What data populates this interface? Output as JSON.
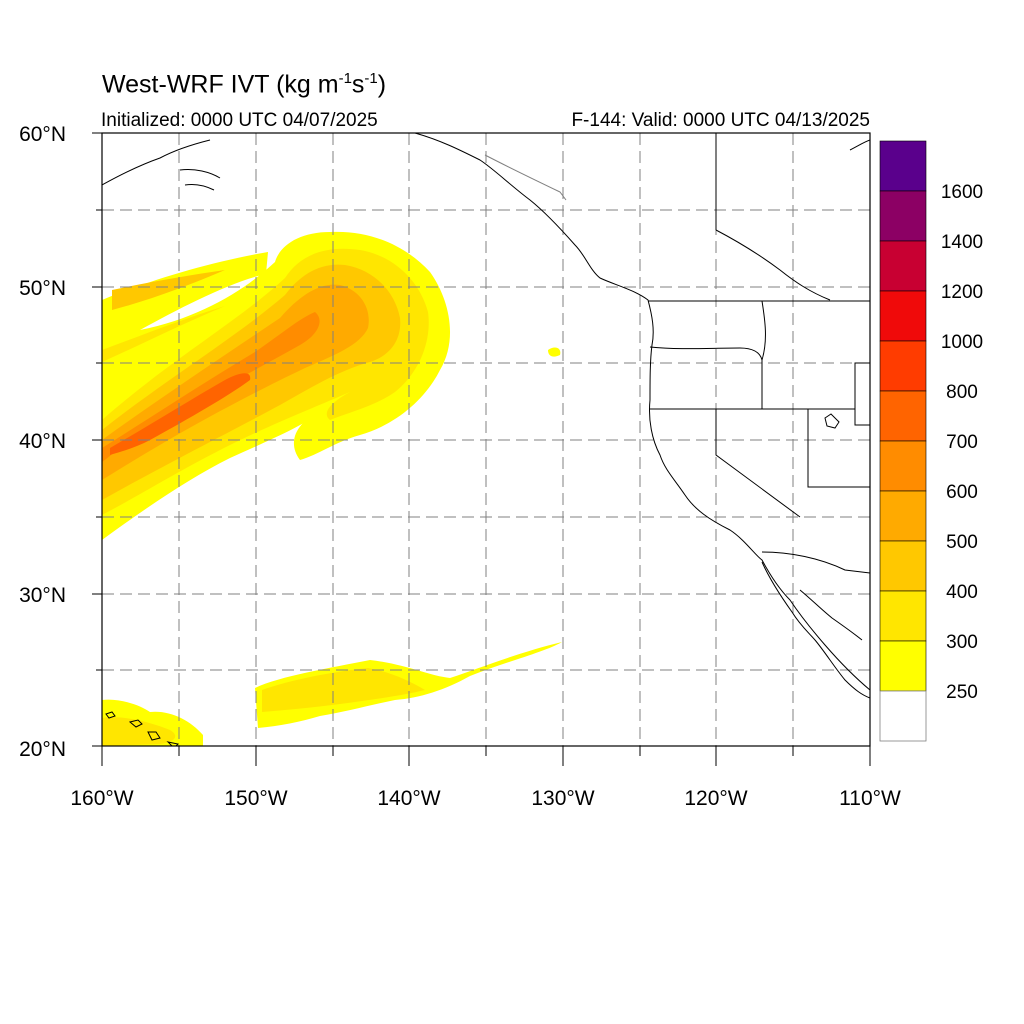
{
  "header": {
    "title_main": "West-WRF IVT (kg m",
    "title_exp1": "-1",
    "title_mid": "s",
    "title_exp2": "-1",
    "title_end": ")",
    "initialized": "Initialized: 0000 UTC 04/07/2025",
    "valid": "F-144: Valid: 0000 UTC 04/13/2025"
  },
  "map": {
    "lat_ticks": [
      {
        "value": 60,
        "label": "60°N"
      },
      {
        "value": 50,
        "label": "50°N"
      },
      {
        "value": 40,
        "label": "40°N"
      },
      {
        "value": 30,
        "label": "30°N"
      },
      {
        "value": 20,
        "label": "20°N"
      }
    ],
    "lon_ticks": [
      {
        "value": -160,
        "label": "160°W"
      },
      {
        "value": -150,
        "label": "150°W"
      },
      {
        "value": -140,
        "label": "140°W"
      },
      {
        "value": -130,
        "label": "130°W"
      },
      {
        "value": -120,
        "label": "120°W"
      },
      {
        "value": -110,
        "label": "110°W"
      }
    ],
    "lat_range": [
      20,
      60
    ],
    "lon_range": [
      -160,
      -110
    ],
    "gridlines": "dashed every 5 degrees"
  },
  "colorbar": {
    "levels": [
      {
        "label": "250",
        "color": "#ffff00"
      },
      {
        "label": "300",
        "color": "#ffe600"
      },
      {
        "label": "400",
        "color": "#ffc800"
      },
      {
        "label": "500",
        "color": "#ffaa00"
      },
      {
        "label": "600",
        "color": "#ff8c00"
      },
      {
        "label": "700",
        "color": "#ff6400"
      },
      {
        "label": "800",
        "color": "#ff3c00"
      },
      {
        "label": "1000",
        "color": "#f00a0a"
      },
      {
        "label": "1200",
        "color": "#c80032"
      },
      {
        "label": "1400",
        "color": "#8c0064"
      },
      {
        "label": "1600",
        "color": "#5a008c"
      }
    ],
    "below_min_color": "#ffffff"
  }
}
